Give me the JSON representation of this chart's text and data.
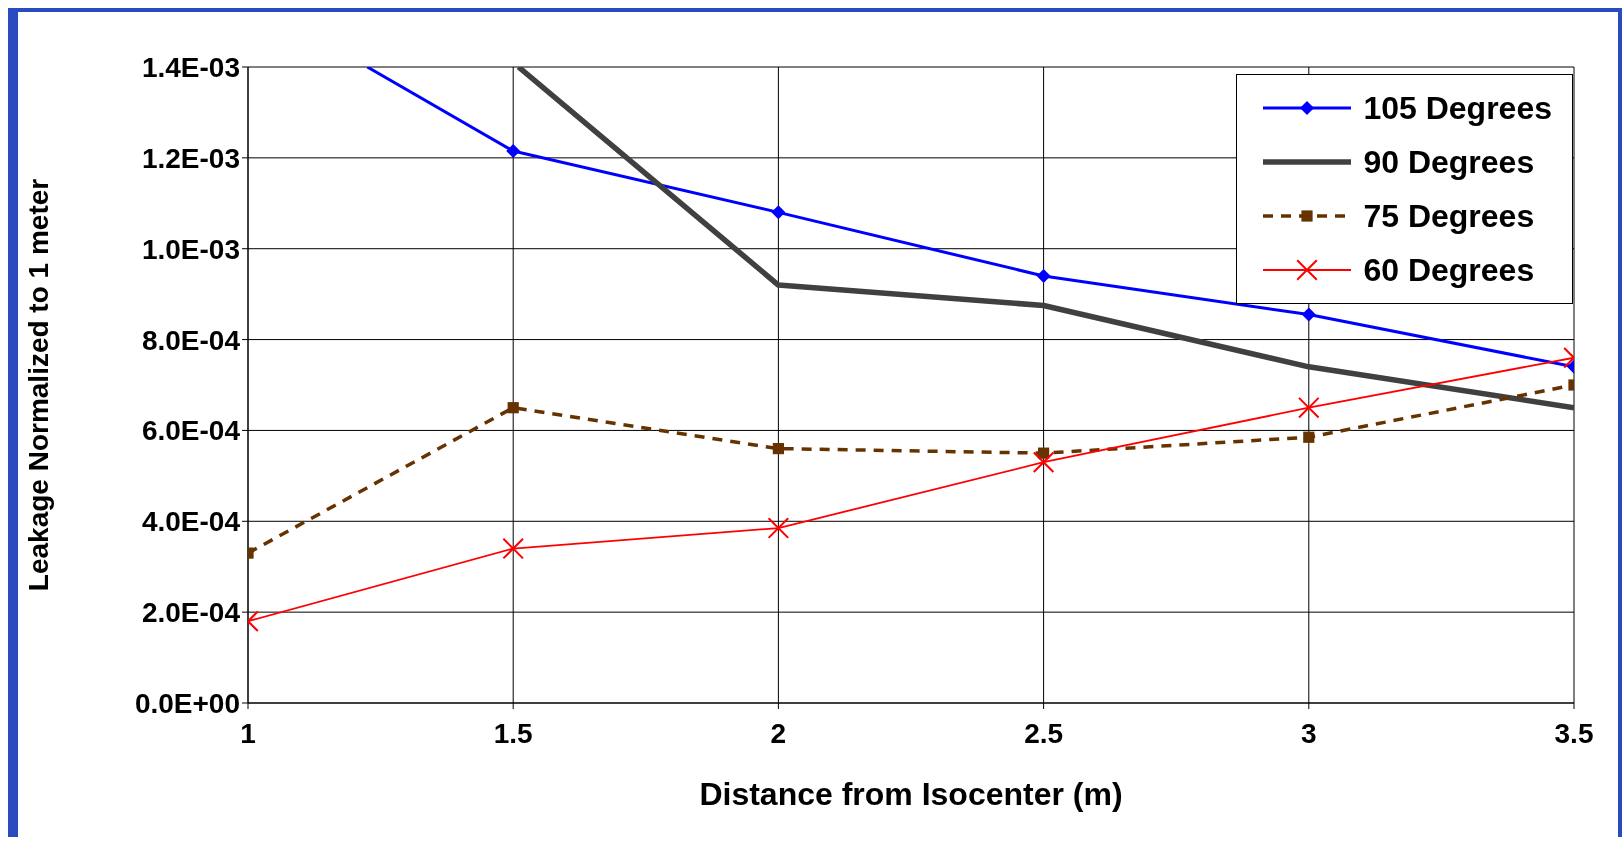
{
  "chart_data": {
    "type": "line",
    "xlabel": "Distance from Isocenter (m)",
    "ylabel": "Leakage Normalized to 1 meter",
    "x": [
      1,
      1.5,
      2,
      2.5,
      3,
      3.5
    ],
    "series": [
      {
        "name": "105 Degrees",
        "color": "#0000ff",
        "marker": "diamond",
        "line_style": "solid",
        "x": [
          1.225,
          1.5,
          2,
          2.5,
          3,
          3.5
        ],
        "values": [
          0.0014,
          0.001215,
          0.00108,
          0.00094,
          0.000855,
          0.00074
        ]
      },
      {
        "name": "90 Degrees",
        "color": "#404040",
        "marker": "none",
        "line_style": "solid",
        "x": [
          1.51,
          2,
          2.5,
          3,
          3.5
        ],
        "values": [
          0.0014,
          0.00092,
          0.000875,
          0.00074,
          0.00065
        ]
      },
      {
        "name": "75 Degrees",
        "color": "#663300",
        "marker": "square",
        "line_style": "dashed",
        "values": [
          0.00033,
          0.00065,
          0.00056,
          0.00055,
          0.000585,
          0.0007
        ]
      },
      {
        "name": "60 Degrees",
        "color": "#ff0000",
        "marker": "cross",
        "line_style": "solid",
        "values": [
          0.00018,
          0.00034,
          0.000385,
          0.00053,
          0.00065,
          0.00076
        ]
      }
    ],
    "xlim": [
      1,
      3.5
    ],
    "xticks": [
      1,
      1.5,
      2,
      2.5,
      3,
      3.5
    ],
    "ylim": [
      0,
      0.0014
    ],
    "yticks": [
      {
        "value": 0,
        "label": "0.0E+00"
      },
      {
        "value": 0.0002,
        "label": "2.0E-04"
      },
      {
        "value": 0.0004,
        "label": "4.0E-04"
      },
      {
        "value": 0.0006,
        "label": "6.0E-04"
      },
      {
        "value": 0.0008,
        "label": "8.0E-04"
      },
      {
        "value": 0.001,
        "label": "1.0E-03"
      },
      {
        "value": 0.0012,
        "label": "1.2E-03"
      },
      {
        "value": 0.0014,
        "label": "1.4E-03"
      }
    ],
    "grid": true,
    "legend": "top right"
  }
}
